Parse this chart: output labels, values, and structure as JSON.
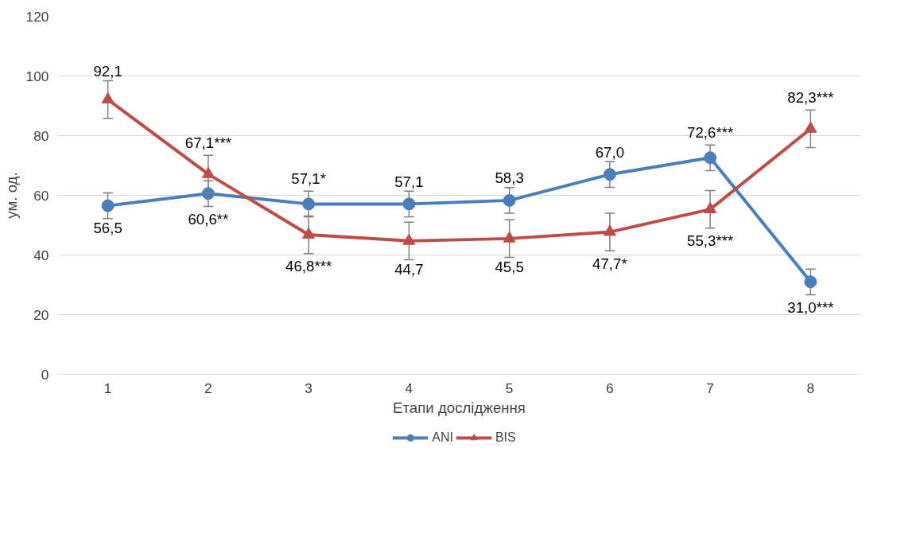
{
  "chart_data": {
    "type": "line",
    "xlabel": "Етапи дослідження",
    "ylabel": "ум. од.",
    "categories": [
      "1",
      "2",
      "3",
      "4",
      "5",
      "6",
      "7",
      "8"
    ],
    "ylim": [
      0,
      120
    ],
    "yticks": [
      0,
      20,
      40,
      60,
      80,
      100,
      120
    ],
    "grid": "y",
    "legend": "bottom",
    "line_style": "solid",
    "series": [
      {
        "name": "ANI",
        "color": "#4a7ebb",
        "marker": "circle",
        "values": [
          56.5,
          60.6,
          57.1,
          57.1,
          58.3,
          67.0,
          72.6,
          31.0
        ],
        "errors": [
          4.3,
          4.3,
          4.3,
          4.3,
          4.3,
          4.3,
          4.3,
          4.3
        ],
        "value_labels": [
          "56,5",
          "60,6**",
          "57,1*",
          "57,1",
          "58,3",
          "67,0",
          "72,6***",
          "31,0***"
        ]
      },
      {
        "name": "BIS",
        "color": "#be4b48",
        "marker": "triangle",
        "values": [
          92.1,
          67.1,
          46.8,
          44.7,
          45.5,
          47.7,
          55.3,
          82.3
        ],
        "errors": [
          6.3,
          6.3,
          6.3,
          6.3,
          6.3,
          6.3,
          6.3,
          6.3
        ],
        "value_labels": [
          "92,1",
          "67,1***",
          "46,8***",
          "44,7",
          "45,5",
          "47,7*",
          "55,3***",
          "82,3***"
        ]
      }
    ]
  }
}
